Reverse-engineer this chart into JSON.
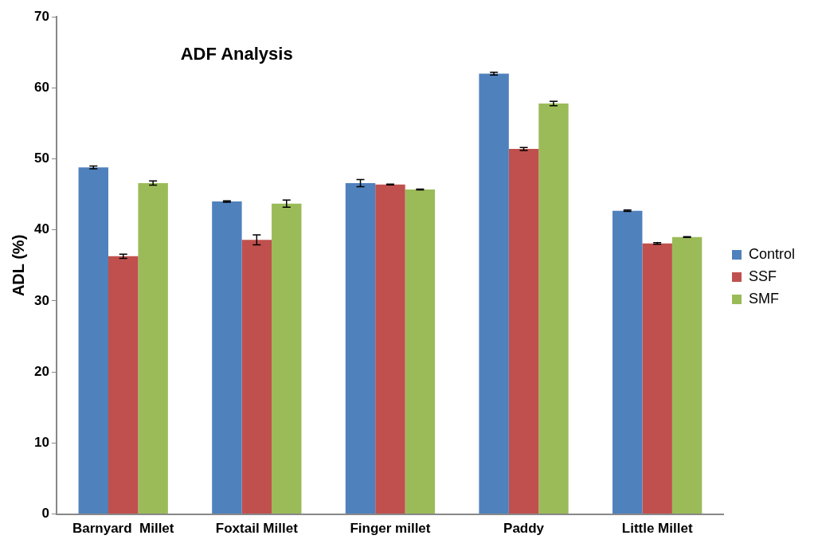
{
  "chart_data": {
    "type": "bar",
    "title": "ADF Analysis",
    "ylabel": "ADL (%)",
    "categories": [
      "Barnyard  Millet",
      "Foxtail Millet",
      "Finger millet",
      "Paddy",
      "Little Millet"
    ],
    "series": [
      {
        "name": "Control",
        "color": "#4f81bd",
        "values": [
          48.8,
          44.0,
          46.6,
          62.0,
          42.7
        ],
        "errors": [
          0.2,
          0.1,
          0.5,
          0.2,
          0.1
        ]
      },
      {
        "name": "SSF",
        "color": "#c0504d",
        "values": [
          36.3,
          38.6,
          46.4,
          51.4,
          38.1
        ],
        "errors": [
          0.3,
          0.7,
          0.05,
          0.2,
          0.1
        ]
      },
      {
        "name": "SMF",
        "color": "#9bbb59",
        "values": [
          46.6,
          43.7,
          45.7,
          57.8,
          39.0
        ],
        "errors": [
          0.3,
          0.5,
          0.05,
          0.3,
          0.05
        ]
      }
    ],
    "ylim": [
      0,
      70
    ],
    "yticks": [
      0,
      10,
      20,
      30,
      40,
      50,
      60,
      70
    ],
    "grid": false,
    "legend": "right"
  }
}
